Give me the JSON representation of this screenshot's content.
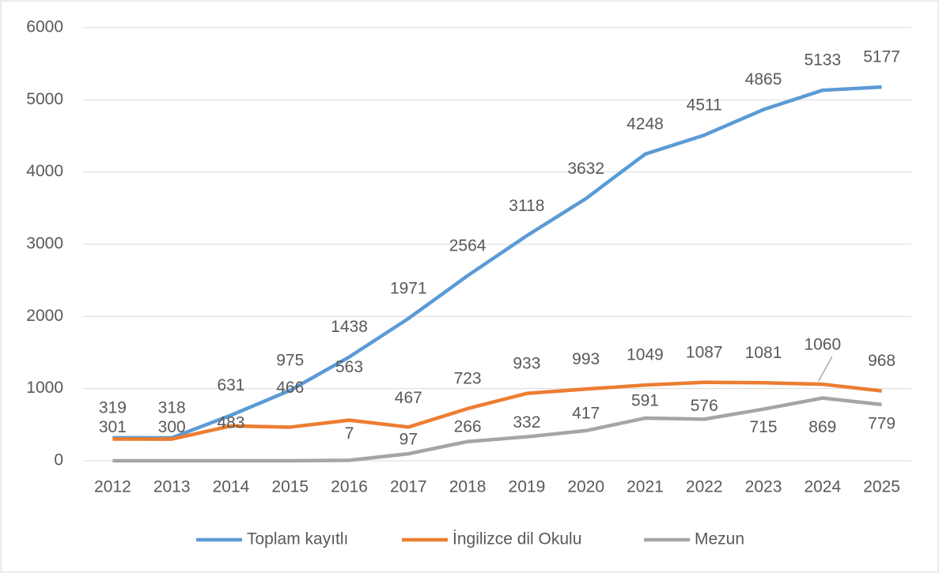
{
  "chart_data": {
    "type": "line",
    "categories": [
      "2012",
      "2013",
      "2014",
      "2015",
      "2016",
      "2017",
      "2018",
      "2019",
      "2020",
      "2021",
      "2022",
      "2023",
      "2024",
      "2025"
    ],
    "series": [
      {
        "name": "Toplam kayıtlı",
        "color": "#5b9bd5",
        "values": [
          319,
          318,
          631,
          975,
          1438,
          1971,
          2564,
          3118,
          3632,
          4248,
          4511,
          4865,
          5133,
          5177
        ]
      },
      {
        "name": "İngilizce dil Okulu",
        "color": "#ed7d31",
        "values": [
          301,
          300,
          483,
          466,
          563,
          467,
          723,
          933,
          993,
          1049,
          1087,
          1081,
          1060,
          968
        ]
      },
      {
        "name": "Mezun",
        "color": "#a5a5a5",
        "values": [
          0,
          0,
          0,
          0,
          7,
          97,
          266,
          332,
          417,
          591,
          576,
          715,
          869,
          779
        ],
        "value_labels": [
          null,
          null,
          null,
          null,
          "7",
          "97",
          "266",
          "332",
          "417",
          "591",
          "576",
          "715",
          "869",
          "779"
        ]
      }
    ],
    "ylim": [
      0,
      6000
    ],
    "yticks": [
      0,
      1000,
      2000,
      3000,
      4000,
      5000,
      6000
    ],
    "grid": true,
    "legend": "bottom"
  }
}
